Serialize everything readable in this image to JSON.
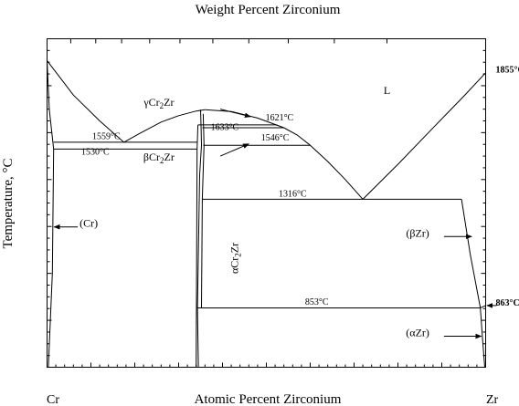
{
  "chart_data": {
    "type": "phase-diagram",
    "title": "Weight Percent Zirconium",
    "xlabel": "Atomic Percent Zirconium",
    "ylabel": "Temperature, °C",
    "xlim": [
      0,
      100
    ],
    "ylim": [
      600,
      2000
    ],
    "grid": false,
    "bottom_ticks": [
      "0",
      "10",
      "20",
      "30",
      "40",
      "50",
      "60",
      "70",
      "80",
      "90",
      "100"
    ],
    "top_ticks": [
      "10",
      "20",
      "30",
      "40",
      "50",
      "60",
      "70",
      "80",
      "90",
      "100"
    ],
    "top_tick_at_percent": [
      5.4,
      11.1,
      17.0,
      23.4,
      30.3,
      37.8,
      46.0,
      55.0,
      65.5,
      77.5
    ],
    "y_ticks": [
      "600",
      "800",
      "1000",
      "1200",
      "1400",
      "1600",
      "1800",
      "2000"
    ],
    "left_element": "Cr",
    "right_element": "Zr",
    "temperature_labels": [
      {
        "text": "1559°C",
        "x": 13.5,
        "y": 1572
      },
      {
        "text": "1530°C",
        "x": 11,
        "y": 1507
      },
      {
        "text": "1633°C",
        "x": 40.5,
        "y": 1612
      },
      {
        "text": "1621°C",
        "x": 53,
        "y": 1652
      },
      {
        "text": "1546°C",
        "x": 52,
        "y": 1566
      },
      {
        "text": "1316°C",
        "x": 56,
        "y": 1327
      },
      {
        "text": "853°C",
        "x": 61.5,
        "y": 866
      },
      {
        "text": "1855°C",
        "x": 102.3,
        "y": 1857,
        "bold": true
      },
      {
        "text": "863°C",
        "x": 102.3,
        "y": 863,
        "bold": true
      }
    ],
    "phase_labels": [
      {
        "text": "L",
        "x": 77.5,
        "y": 1765
      },
      {
        "text": "(Cr)",
        "x": 9.5,
        "y": 1198
      },
      {
        "text": "(βZr)",
        "x": 84.5,
        "y": 1157
      },
      {
        "text": "(αZr)",
        "x": 84.5,
        "y": 732
      }
    ],
    "compound_labels": [
      {
        "greek": "γ",
        "base": "Cr",
        "sub": "2",
        "tail": "Zr",
        "x": 25.5,
        "y": 1715
      },
      {
        "greek": "β",
        "base": "Cr",
        "sub": "2",
        "tail": "Zr",
        "x": 25.5,
        "y": 1480
      },
      {
        "greek": "α",
        "base": "Cr",
        "sub": "2",
        "tail": "Zr",
        "x": 43.5,
        "y": 1065,
        "vertical": true
      }
    ],
    "curves": [
      {
        "name": "cr-liquidus",
        "points": [
          [
            0,
            1907
          ],
          [
            6,
            1760
          ],
          [
            12,
            1650
          ],
          [
            17.5,
            1559
          ]
        ]
      },
      {
        "name": "left-liquidus",
        "points": [
          [
            17.5,
            1559
          ],
          [
            21,
            1595
          ],
          [
            26,
            1645
          ],
          [
            30,
            1672
          ],
          [
            34,
            1692
          ],
          [
            36,
            1698
          ]
        ]
      },
      {
        "name": "right-liquidus-upper",
        "points": [
          [
            36,
            1698
          ],
          [
            42,
            1690
          ],
          [
            48,
            1662
          ],
          [
            54,
            1621
          ],
          [
            57,
            1590
          ],
          [
            60,
            1546
          ]
        ]
      },
      {
        "name": "right-liquidus-lower",
        "points": [
          [
            60,
            1546
          ],
          [
            64,
            1477
          ],
          [
            68,
            1400
          ],
          [
            72,
            1316
          ]
        ]
      },
      {
        "name": "zr-liquidus",
        "points": [
          [
            72,
            1316
          ],
          [
            80,
            1465
          ],
          [
            88,
            1620
          ],
          [
            95,
            1755
          ],
          [
            100,
            1855
          ]
        ]
      },
      {
        "name": "cr-solvus",
        "points": [
          [
            0,
            1907
          ],
          [
            0.5,
            1700
          ],
          [
            1.5,
            1530
          ],
          [
            1.2,
            1000
          ],
          [
            0.3,
            600
          ]
        ]
      },
      {
        "name": "compound-left-upper",
        "points": [
          [
            34.4,
            1633
          ],
          [
            34.2,
            1530
          ],
          [
            34,
            600
          ]
        ]
      },
      {
        "name": "compound-right-edge",
        "points": [
          [
            35,
            1698
          ],
          [
            35.1,
            1633
          ],
          [
            35.2,
            1546
          ],
          [
            34.8,
            1420
          ],
          [
            34.3,
            853
          ],
          [
            34.5,
            600
          ]
        ]
      },
      {
        "name": "compound-inner",
        "points": [
          [
            35.6,
            1680
          ],
          [
            35.8,
            1546
          ],
          [
            35.4,
            1316
          ],
          [
            35.2,
            853
          ]
        ]
      },
      {
        "name": "bzr-solvus",
        "points": [
          [
            94.5,
            1316
          ],
          [
            96.5,
            1080
          ],
          [
            98.8,
            853
          ],
          [
            100,
            863
          ]
        ]
      },
      {
        "name": "azr-solvus",
        "points": [
          [
            98.8,
            853
          ],
          [
            99.3,
            720
          ],
          [
            99.8,
            600
          ]
        ]
      }
    ],
    "horizontal_lines": [
      {
        "name": "isotherm-1559",
        "x1": 1.5,
        "x2": 34.2,
        "y": 1559
      },
      {
        "name": "isotherm-1530",
        "x1": 1.5,
        "x2": 34.2,
        "y": 1530
      },
      {
        "name": "isotherm-1633",
        "x1": 34.4,
        "x2": 52.5,
        "y": 1633
      },
      {
        "name": "isotherm-1621",
        "x1": 35.4,
        "x2": 54,
        "y": 1621
      },
      {
        "name": "isotherm-1546",
        "x1": 35.6,
        "x2": 60,
        "y": 1546
      },
      {
        "name": "isotherm-1316",
        "x1": 35.4,
        "x2": 94.5,
        "y": 1316
      },
      {
        "name": "isotherm-853",
        "x1": 34.3,
        "x2": 98.8,
        "y": 853
      }
    ],
    "arrows": [
      {
        "name": "arrow-gamma",
        "x1": 39.5,
        "y1": 1700,
        "x2": 46.4,
        "y2": 1668
      },
      {
        "name": "arrow-beta",
        "x1": 39.5,
        "y1": 1500,
        "x2": 46,
        "y2": 1552
      },
      {
        "name": "arrow-cr",
        "x1": 7,
        "y1": 1198,
        "x2": 1.6,
        "y2": 1198
      },
      {
        "name": "arrow-bzr",
        "x1": 90.5,
        "y1": 1157,
        "x2": 96.8,
        "y2": 1157
      },
      {
        "name": "arrow-azr",
        "x1": 90.5,
        "y1": 732,
        "x2": 99,
        "y2": 732
      },
      {
        "name": "arrow-863",
        "x1": 102.5,
        "y1": 863,
        "x2": 100.3,
        "y2": 863
      }
    ]
  }
}
